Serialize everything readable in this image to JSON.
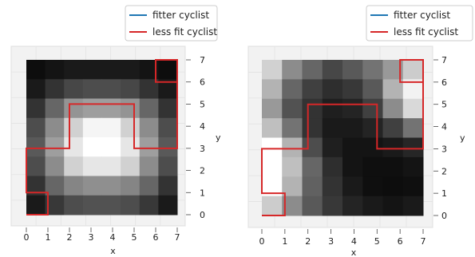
{
  "chart_data": [
    {
      "type": "heatmap",
      "view": "3d-top",
      "xlabel": "x",
      "ylabel": "y",
      "xticks": [
        0,
        1,
        2,
        3,
        4,
        5,
        6,
        7
      ],
      "yticks": [
        0,
        1,
        2,
        3,
        4,
        5,
        6,
        7
      ],
      "xlim": [
        0,
        7
      ],
      "ylim": [
        0,
        7
      ],
      "colormap": "gray",
      "legend": {
        "placement": "top-right",
        "entries": [
          {
            "label": "fitter cyclist",
            "color": "#1f77b4"
          },
          {
            "label": "less fit cyclist",
            "color": "#d62728"
          }
        ]
      },
      "grid_brightness_rows_top_to_bottom": [
        [
          0.05,
          0.08,
          0.1,
          0.1,
          0.1,
          0.1,
          0.08,
          0.05
        ],
        [
          0.1,
          0.2,
          0.28,
          0.3,
          0.3,
          0.28,
          0.2,
          0.1
        ],
        [
          0.2,
          0.4,
          0.58,
          0.62,
          0.62,
          0.58,
          0.4,
          0.2
        ],
        [
          0.3,
          0.55,
          0.82,
          0.96,
          0.96,
          0.82,
          0.55,
          0.3
        ],
        [
          0.35,
          0.62,
          0.9,
          1.0,
          1.0,
          0.9,
          0.62,
          0.35
        ],
        [
          0.3,
          0.55,
          0.82,
          0.9,
          0.9,
          0.82,
          0.55,
          0.3
        ],
        [
          0.2,
          0.4,
          0.52,
          0.56,
          0.56,
          0.52,
          0.4,
          0.2
        ],
        [
          0.1,
          0.22,
          0.3,
          0.32,
          0.32,
          0.3,
          0.22,
          0.1
        ]
      ],
      "path_less_fit": [
        [
          0,
          0
        ],
        [
          1,
          0
        ],
        [
          1,
          1
        ],
        [
          0,
          1
        ],
        [
          0,
          3
        ],
        [
          2,
          3
        ],
        [
          2,
          5
        ],
        [
          5,
          5
        ],
        [
          5,
          3
        ],
        [
          7,
          3
        ],
        [
          7,
          7
        ],
        [
          6,
          7
        ],
        [
          6,
          6
        ],
        [
          7,
          6
        ]
      ]
    },
    {
      "type": "heatmap",
      "view": "3d-top",
      "xlabel": "x",
      "ylabel": "y",
      "xticks": [
        0,
        1,
        2,
        3,
        4,
        5,
        6,
        7
      ],
      "yticks": [
        0,
        1,
        2,
        3,
        4,
        5,
        6,
        7
      ],
      "xlim": [
        0,
        7
      ],
      "ylim": [
        0,
        7
      ],
      "colormap": "gray",
      "legend": {
        "placement": "top-right",
        "entries": [
          {
            "label": "fitter cyclist",
            "color": "#1f77b4"
          },
          {
            "label": "less fit cyclist",
            "color": "#d62728"
          }
        ]
      },
      "grid_brightness_rows_top_to_bottom": [
        [
          0.82,
          0.55,
          0.4,
          0.28,
          0.35,
          0.45,
          0.6,
          0.8
        ],
        [
          0.7,
          0.4,
          0.25,
          0.18,
          0.22,
          0.35,
          0.7,
          0.95
        ],
        [
          0.6,
          0.32,
          0.2,
          0.12,
          0.14,
          0.25,
          0.55,
          0.85
        ],
        [
          0.75,
          0.45,
          0.2,
          0.1,
          0.1,
          0.14,
          0.25,
          0.45
        ],
        [
          1.0,
          0.7,
          0.3,
          0.12,
          0.08,
          0.08,
          0.1,
          0.15
        ],
        [
          1.0,
          0.75,
          0.4,
          0.18,
          0.08,
          0.06,
          0.06,
          0.08
        ],
        [
          1.0,
          0.7,
          0.38,
          0.2,
          0.1,
          0.06,
          0.05,
          0.06
        ],
        [
          0.8,
          0.55,
          0.35,
          0.22,
          0.14,
          0.1,
          0.08,
          0.1
        ]
      ],
      "path_less_fit": [
        [
          0,
          0
        ],
        [
          1,
          0
        ],
        [
          1,
          1
        ],
        [
          0,
          1
        ],
        [
          0,
          3
        ],
        [
          2,
          3
        ],
        [
          2,
          5
        ],
        [
          5,
          5
        ],
        [
          5,
          3
        ],
        [
          7,
          3
        ],
        [
          7,
          7
        ],
        [
          6,
          7
        ],
        [
          6,
          6
        ],
        [
          7,
          6
        ]
      ]
    }
  ]
}
